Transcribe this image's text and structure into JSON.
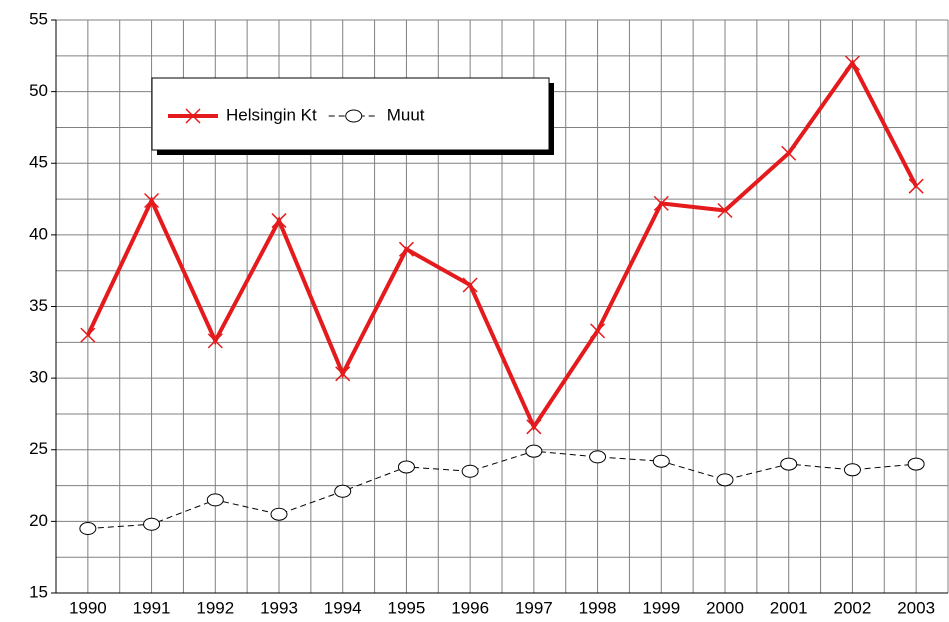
{
  "chart_data": {
    "type": "line",
    "categories": [
      "1990",
      "1991",
      "1992",
      "1993",
      "1994",
      "1995",
      "1996",
      "1997",
      "1998",
      "1999",
      "2000",
      "2001",
      "2002",
      "2003"
    ],
    "series": [
      {
        "name": "Helsingin Kt",
        "color": "#e41a1c",
        "marker": "x",
        "dashed": false,
        "values": [
          33,
          42.4,
          32.6,
          41,
          30.3,
          39,
          36.5,
          26.6,
          33.3,
          42.2,
          41.7,
          45.7,
          52,
          43.4
        ]
      },
      {
        "name": "Muut",
        "color": "#000000",
        "marker": "circle",
        "dashed": true,
        "values": [
          19.5,
          19.8,
          21.5,
          20.5,
          22.1,
          23.8,
          23.5,
          24.9,
          24.5,
          24.2,
          22.9,
          24,
          23.6,
          24
        ]
      }
    ],
    "ylim": [
      15,
      55
    ],
    "yticks": [
      15,
      20,
      25,
      30,
      35,
      40,
      45,
      50,
      55
    ],
    "grid": true
  }
}
